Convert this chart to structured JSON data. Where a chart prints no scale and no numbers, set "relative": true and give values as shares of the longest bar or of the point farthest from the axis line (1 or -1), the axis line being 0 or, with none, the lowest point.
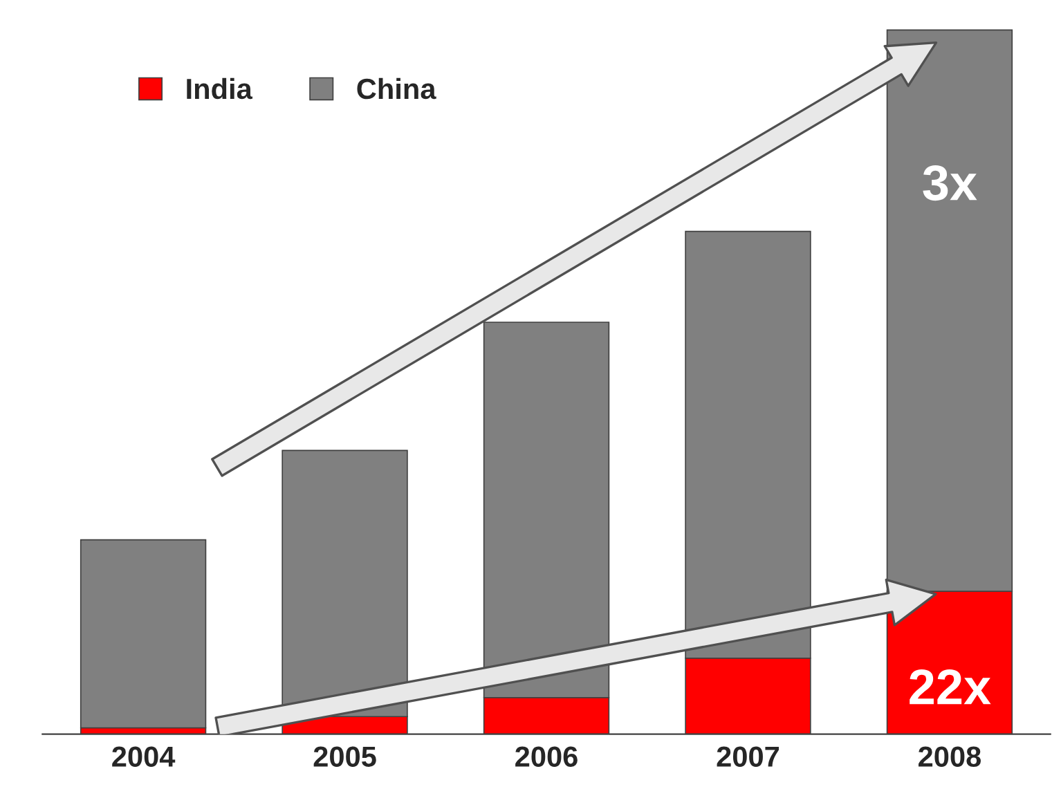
{
  "chart_data": {
    "type": "bar",
    "stacked": true,
    "relative": true,
    "categories": [
      "2004",
      "2005",
      "2006",
      "2007",
      "2008"
    ],
    "series": [
      {
        "name": "India",
        "color": "#ff0000",
        "values": [
          0.009,
          0.025,
          0.052,
          0.108,
          0.203
        ]
      },
      {
        "name": "China",
        "color": "#808080",
        "values": [
          0.267,
          0.378,
          0.533,
          0.606,
          0.797
        ]
      }
    ],
    "annotations": [
      "3x",
      "22x"
    ],
    "legend": "top left",
    "grid": false
  }
}
